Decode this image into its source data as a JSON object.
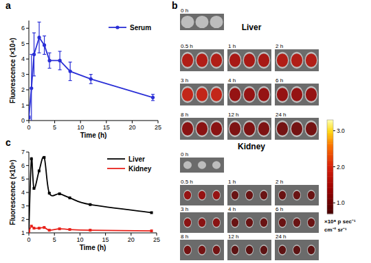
{
  "chart_data": [
    {
      "panel": "a",
      "type": "line",
      "x": [
        0,
        0.5,
        1,
        2,
        3,
        4,
        6,
        8,
        12,
        24
      ],
      "series": [
        {
          "name": "Serum",
          "color": "#2a2fd6",
          "marker": "circle",
          "line_style": "solid",
          "values": [
            0.2,
            2.1,
            4.3,
            5.4,
            4.9,
            3.9,
            3.9,
            3.2,
            2.7,
            1.5
          ],
          "error": [
            0.1,
            2.2,
            1.4,
            1.0,
            0.6,
            0.5,
            0.6,
            0.6,
            0.3,
            0.2
          ]
        }
      ],
      "x_label": "Time (h)",
      "y_label": "Fluorescence (×10⁴)",
      "xlim": [
        0,
        25
      ],
      "ylim": [
        0,
        6.5
      ],
      "xticks": [
        0,
        5,
        10,
        15,
        20,
        25
      ],
      "yticks": [
        0,
        1,
        2,
        3,
        4,
        5,
        6
      ],
      "legend": "upper right"
    },
    {
      "panel": "b",
      "type": "image_grid",
      "categories": [
        "0 h",
        "0.5 h",
        "1 h",
        "2 h",
        "3 h",
        "4 h",
        "6 h",
        "8 h",
        "12 h",
        "24 h"
      ],
      "series": [
        {
          "name": "Liver",
          "values": [
            0,
            1.6,
            1.5,
            1.6,
            1.8,
            1.3,
            1.3,
            1.2,
            1.1,
            1.0
          ]
        },
        {
          "name": "Kidney",
          "values": [
            0,
            1.3,
            0.9,
            0.9,
            1.2,
            0.9,
            0.9,
            1.0,
            0.8,
            0.8
          ]
        }
      ],
      "colorbar_range": [
        0.7,
        3.3
      ],
      "colorbar_ticks": [
        {
          "value": 3,
          "label": "3.0"
        },
        {
          "value": 2,
          "label": "2.0"
        },
        {
          "value": 1,
          "label": "1.0"
        }
      ],
      "colorbar_label": [
        "×10⁸ p sec⁻¹",
        "cm⁻² sr⁻¹"
      ]
    },
    {
      "panel": "c",
      "type": "line",
      "x": [
        0,
        0.5,
        1,
        2,
        3,
        4,
        6,
        8,
        12,
        24
      ],
      "series": [
        {
          "name": "Liver",
          "color": "#000000",
          "marker": "square",
          "line_style": "smooth",
          "values": [
            1.2,
            6.5,
            4.3,
            5.6,
            6.6,
            3.95,
            3.9,
            3.6,
            3.1,
            2.5
          ]
        },
        {
          "name": "Kidney",
          "color": "#e8221b",
          "marker": "square",
          "line_style": "smooth",
          "values": [
            1.1,
            1.5,
            1.35,
            1.35,
            1.4,
            1.2,
            1.3,
            1.25,
            1.2,
            1.15
          ]
        }
      ],
      "x_label": "Time (h)",
      "y_label": "Fluorescence (×10⁹)",
      "xlim": [
        0,
        25
      ],
      "ylim": [
        1,
        7
      ],
      "xticks": [
        0,
        5,
        10,
        15,
        20,
        25
      ],
      "yticks": [
        1,
        2,
        3,
        4,
        5,
        6,
        7
      ],
      "legend": "upper right"
    }
  ]
}
